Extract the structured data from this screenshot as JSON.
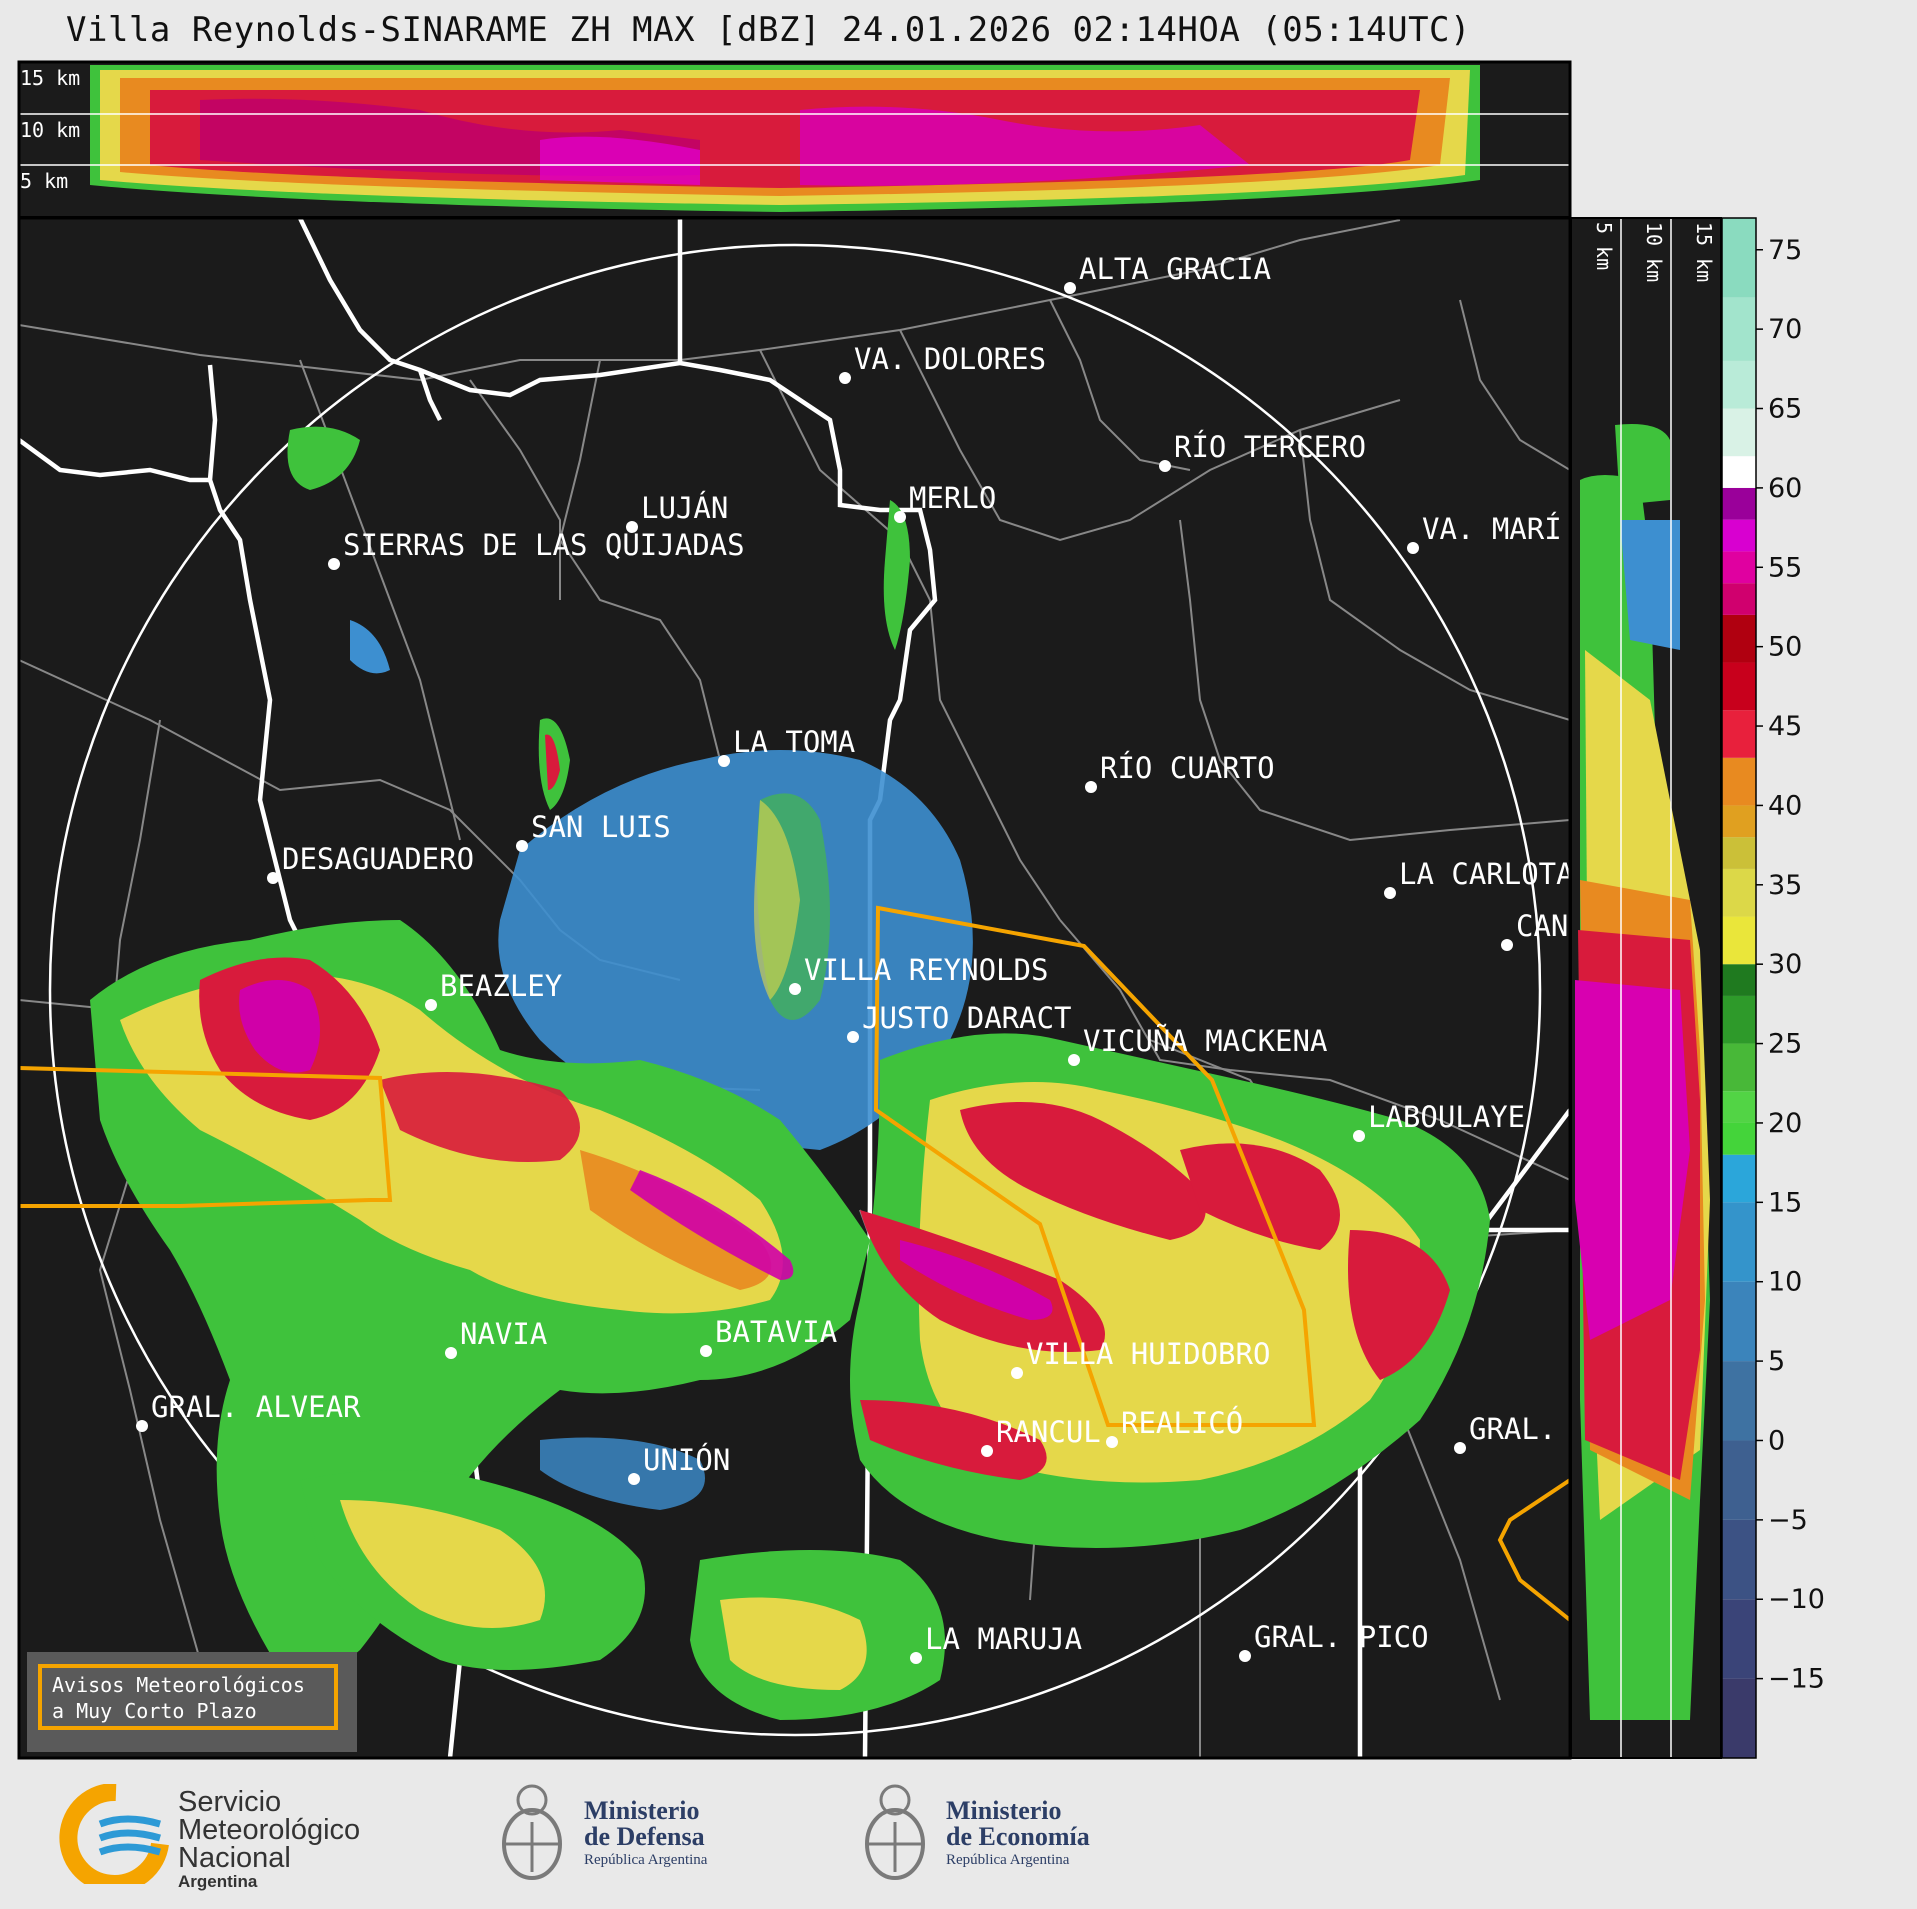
{
  "title": "Villa Reynolds-SINARAME ZH MAX [dBZ] 24.01.2026 02:14HOA (05:14UTC)",
  "top_section_labels": [
    "15 km",
    "10 km",
    "5 km"
  ],
  "side_section_labels": [
    "5 km",
    "10 km",
    "15 km"
  ],
  "colorbar": {
    "unit": "dBZ",
    "ticks": [
      "75",
      "70",
      "65",
      "60",
      "55",
      "50",
      "45",
      "40",
      "35",
      "30",
      "25",
      "20",
      "15",
      "10",
      "5",
      "0",
      "−5",
      "−10",
      "−15"
    ],
    "range": [
      -20,
      77
    ]
  },
  "places": [
    {
      "name": "ALTA GRACIA"
    },
    {
      "name": "VA. DOLORES"
    },
    {
      "name": "RÍO TERCERO"
    },
    {
      "name": "LUJÁN"
    },
    {
      "name": "MERLO"
    },
    {
      "name": "VA. MARÍ"
    },
    {
      "name": "SIERRAS DE LAS QUIJADAS"
    },
    {
      "name": "LA TOMA"
    },
    {
      "name": "RÍO CUARTO"
    },
    {
      "name": "SAN LUIS"
    },
    {
      "name": "DESAGUADERO"
    },
    {
      "name": "LA CARLOTA"
    },
    {
      "name": "CAN"
    },
    {
      "name": "VILLA REYNOLDS"
    },
    {
      "name": "BEAZLEY"
    },
    {
      "name": "JUSTO DARACT"
    },
    {
      "name": "VICUÑA MACKENA"
    },
    {
      "name": "LABOULAYE"
    },
    {
      "name": "NAVIA"
    },
    {
      "name": "BATAVIA"
    },
    {
      "name": "VILLA HUIDOBRO"
    },
    {
      "name": "GRAL. ALVEAR"
    },
    {
      "name": "RANCUL"
    },
    {
      "name": "REALICÓ"
    },
    {
      "name": "GRAL."
    },
    {
      "name": "UNIÓN"
    },
    {
      "name": "LA MARUJA"
    },
    {
      "name": "GRAL. PICO"
    }
  ],
  "warning_box": {
    "line1": "Avisos Meteorológicos",
    "line2": "a Muy Corto Plazo"
  },
  "footer": {
    "smn": {
      "line1": "Servicio",
      "line2": "Meteorológico",
      "line3": "Nacional",
      "line4": "Argentina"
    },
    "defensa": {
      "line1": "Ministerio",
      "line2": "de Defensa",
      "line3": "República Argentina"
    },
    "economia": {
      "line1": "Ministerio",
      "line2": "de Economía",
      "line3": "República Argentina"
    }
  },
  "colors": {
    "background": "#1b1b1b",
    "warning_polygon": "#f5a400",
    "province_border": "#ffffff",
    "department_border": "#888888"
  }
}
